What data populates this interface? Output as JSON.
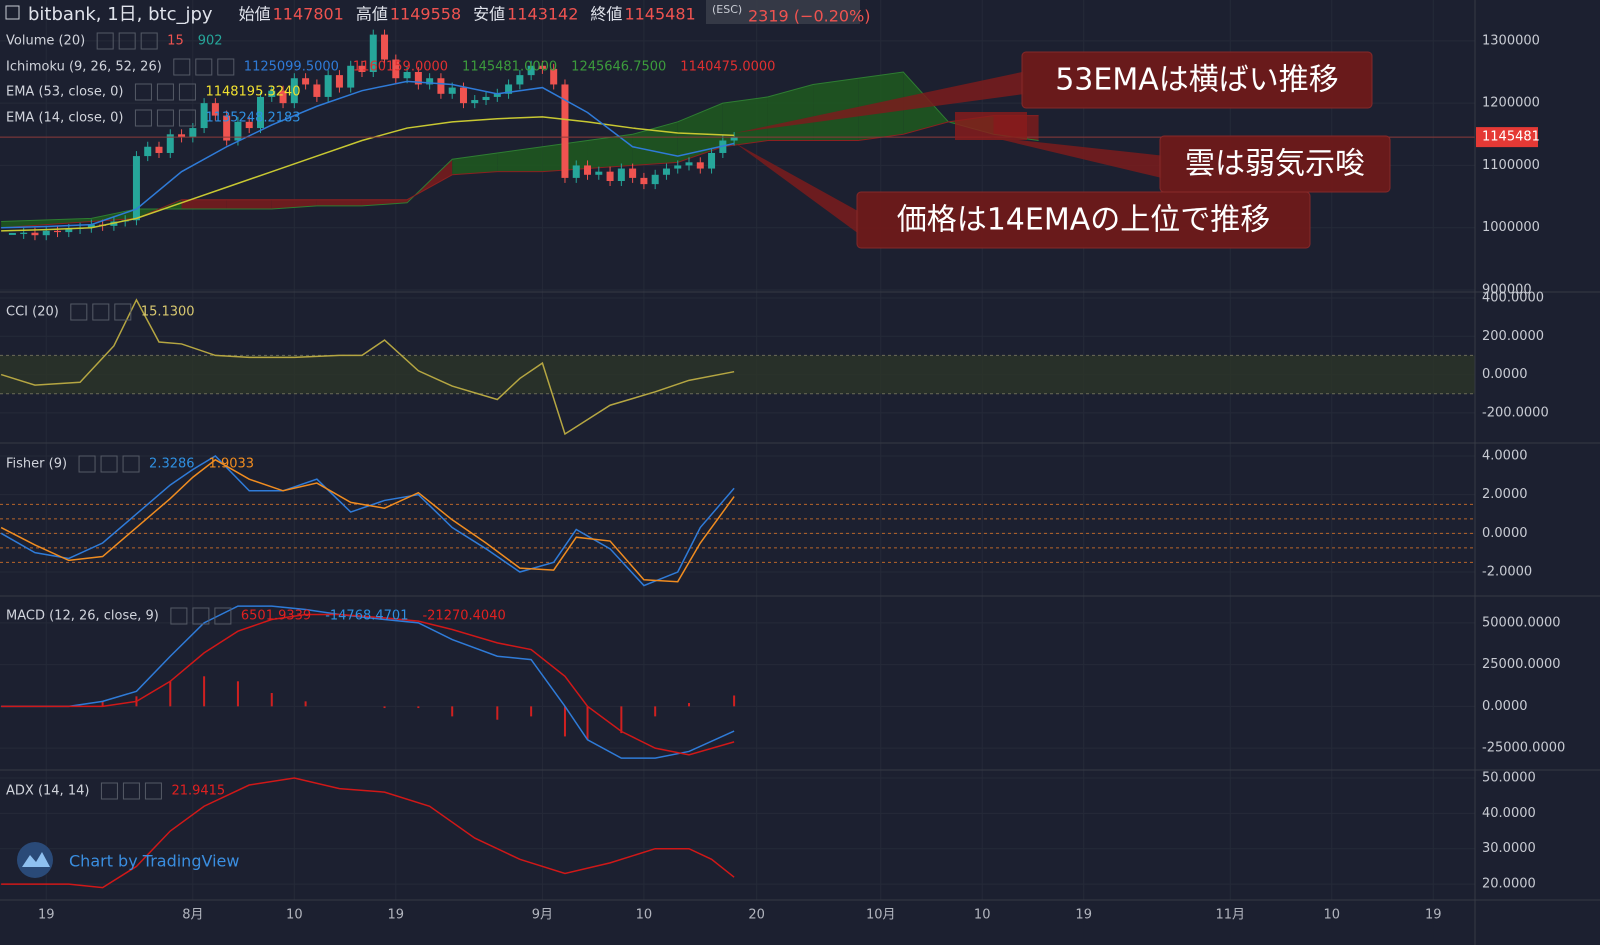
{
  "header": {
    "symbol": "bitbank, 1日, btc_jpy",
    "fields": [
      {
        "label": "始値",
        "value": 1147801
      },
      {
        "label": "高値",
        "value": 1149558
      },
      {
        "label": "安値",
        "value": 1143142
      },
      {
        "label": "終値",
        "value": 1145481
      }
    ],
    "change": "2319 (−0.20%)",
    "esc": "(ESC)"
  },
  "x_axis": {
    "xlim": [
      -4.1,
      126.7
    ],
    "xticks": [
      {
        "value": 0,
        "label": "19"
      },
      {
        "value": 13,
        "label": "8月"
      },
      {
        "value": 22,
        "label": "10"
      },
      {
        "value": 31,
        "label": "19"
      },
      {
        "value": 44,
        "label": "9月"
      },
      {
        "value": 53,
        "label": "10"
      },
      {
        "value": 63,
        "label": "20"
      },
      {
        "value": 74,
        "label": "10月"
      },
      {
        "value": 83,
        "label": "10"
      },
      {
        "value": 92,
        "label": "19"
      },
      {
        "value": 105,
        "label": "11月"
      },
      {
        "value": 114,
        "label": "10"
      },
      {
        "value": 123,
        "label": "19"
      }
    ]
  },
  "chart_data": [
    {
      "type": "candlestick",
      "ylim": [
        896800,
        1365600
      ],
      "yticks": [
        900000,
        1000000,
        1100000,
        1200000,
        1300000
      ],
      "last_price": 1145481,
      "candles": {
        "up_color": "#26a69a",
        "down_color": "#ef5350",
        "x": [
          -3,
          -2,
          -1,
          0,
          1,
          2,
          3,
          4,
          5,
          6,
          7,
          8,
          9,
          10,
          11,
          12,
          13,
          14,
          15,
          16,
          17,
          18,
          19,
          20,
          21,
          22,
          23,
          24,
          25,
          26,
          27,
          28,
          29,
          30,
          31,
          32,
          33,
          34,
          35,
          36,
          37,
          38,
          39,
          40,
          41,
          42,
          43,
          44,
          45,
          46,
          47,
          48,
          49,
          50,
          51,
          52,
          53,
          54,
          55,
          56,
          57,
          58,
          59,
          60,
          61
        ],
        "close": [
          990000,
          992000,
          988000,
          995000,
          993000,
          998000,
          1000000,
          1005000,
          1003000,
          1010000,
          1012000,
          1115000,
          1130000,
          1120000,
          1150000,
          1145000,
          1160000,
          1200000,
          1180000,
          1140000,
          1170000,
          1160000,
          1210000,
          1220000,
          1200000,
          1240000,
          1230000,
          1210000,
          1245000,
          1225000,
          1260000,
          1250000,
          1310000,
          1270000,
          1240000,
          1250000,
          1230000,
          1240000,
          1215000,
          1225000,
          1200000,
          1205000,
          1210000,
          1215000,
          1230000,
          1245000,
          1260000,
          1255000,
          1230000,
          1080000,
          1100000,
          1085000,
          1090000,
          1075000,
          1095000,
          1080000,
          1070000,
          1085000,
          1095000,
          1100000,
          1105000,
          1095000,
          1120000,
          1140000,
          1145481
        ]
      },
      "indicators": [
        {
          "name": "Volume (20)",
          "readouts": [
            {
              "text": "15",
              "color": "#ef5350"
            },
            {
              "text": "902",
              "color": "#26a69a"
            }
          ]
        },
        {
          "name": "Ichimoku (9, 26, 52, 26)",
          "readouts": [
            {
              "text": "1125099.5000",
              "color": "#2f7bd8"
            },
            {
              "text": "1160159.0000",
              "color": "#e03030"
            },
            {
              "text": "1145481.0000",
              "color": "#3c9c3c"
            },
            {
              "text": "1245646.7500",
              "color": "#3c9c3c"
            },
            {
              "text": "1140475.0000",
              "color": "#e03030"
            }
          ],
          "series": [
            {
              "type": "cloud",
              "up_color": "#1f5a1f",
              "down_color": "#7a1c1c",
              "x": [
                -4,
                4,
                8,
                12,
                16,
                20,
                24,
                28,
                32,
                36,
                40,
                44,
                48,
                52,
                56,
                60,
                64,
                68,
                72,
                76,
                80,
                84,
                88
              ],
              "a": [
                1010000,
                1015000,
                1030000,
                1030000,
                1030000,
                1030000,
                1035000,
                1035000,
                1040000,
                1110000,
                1120000,
                1130000,
                1140000,
                1150000,
                1170000,
                1200000,
                1210000,
                1230000,
                1240000,
                1250000,
                1170000,
                1150000,
                1140000
              ],
              "b": [
                1000000,
                1010000,
                1015000,
                1045000,
                1045000,
                1045000,
                1045000,
                1045000,
                1045000,
                1085000,
                1090000,
                1090000,
                1095000,
                1100000,
                1105000,
                1130000,
                1140000,
                1140000,
                1140000,
                1150000,
                1170000,
                1180000,
                1180000
              ]
            }
          ]
        },
        {
          "name": "EMA (53, close, 0)",
          "readouts": [
            {
              "text": "1148195.3240",
              "color": "#f0e030"
            }
          ],
          "series": [
            {
              "type": "line",
              "color": "#c8c832",
              "x": [
                -4,
                0,
                4,
                8,
                12,
                16,
                20,
                24,
                28,
                32,
                36,
                40,
                44,
                48,
                52,
                56,
                61
              ],
              "values": [
                995000,
                997000,
                1000000,
                1015000,
                1040000,
                1065000,
                1090000,
                1115000,
                1140000,
                1160000,
                1170000,
                1175000,
                1178000,
                1170000,
                1160000,
                1152000,
                1148195
              ]
            }
          ]
        },
        {
          "name": "EMA (14, close, 0)",
          "readouts": [
            {
              "text": "1135248.2183",
              "color": "#2f8fe0"
            }
          ],
          "series": [
            {
              "type": "line",
              "color": "#2f7bd8",
              "x": [
                -4,
                0,
                4,
                8,
                12,
                16,
                20,
                24,
                28,
                32,
                36,
                40,
                44,
                48,
                52,
                56,
                61
              ],
              "values": [
                1000000,
                1002000,
                1005000,
                1030000,
                1090000,
                1130000,
                1165000,
                1195000,
                1220000,
                1235000,
                1230000,
                1215000,
                1225000,
                1185000,
                1130000,
                1115000,
                1135248
              ]
            }
          ]
        }
      ]
    },
    {
      "type": "line",
      "ylim": [
        -357,
        431
      ],
      "yticks": [
        {
          "value": -200,
          "label": "-200.0000"
        },
        {
          "value": 0,
          "label": "0.0000"
        },
        {
          "value": 200,
          "label": "200.0000"
        },
        {
          "value": 400,
          "label": "400.0000"
        }
      ],
      "band": [
        -100,
        100
      ],
      "indicators": [
        {
          "name": "CCI (20)",
          "readouts": [
            {
              "text": "15.1300",
              "color": "#d8c870"
            }
          ],
          "series": [
            {
              "type": "line",
              "color": "#b5a642",
              "x": [
                -4,
                -1,
                3,
                6,
                8,
                10,
                12,
                15,
                18,
                22,
                26,
                28,
                30,
                33,
                36,
                40,
                42,
                44,
                46,
                50,
                54,
                57,
                61
              ],
              "values": [
                0,
                -55,
                -40,
                150,
                390,
                170,
                160,
                100,
                90,
                90,
                100,
                100,
                180,
                20,
                -60,
                -130,
                -20,
                60,
                -310,
                -160,
                -90,
                -30,
                15.13
              ]
            }
          ]
        }
      ]
    },
    {
      "type": "line",
      "ylim": [
        -3.24,
        4.67
      ],
      "yticks": [
        {
          "value": -2,
          "label": "-2.0000"
        },
        {
          "value": 0,
          "label": "0.0000"
        },
        {
          "value": 2,
          "label": "2.0000"
        },
        {
          "value": 4,
          "label": "4.0000"
        }
      ],
      "levels": [
        1.5,
        0.75,
        0,
        -0.75,
        -1.5
      ],
      "indicators": [
        {
          "name": "Fisher (9)",
          "readouts": [
            {
              "text": "2.3286",
              "color": "#2f8fe0"
            },
            {
              "text": "1.9033",
              "color": "#f08c20"
            }
          ],
          "series": [
            {
              "type": "line",
              "color": "#2f7bd8",
              "x": [
                -4,
                -1,
                2,
                5,
                8,
                11,
                13,
                15,
                18,
                21,
                24,
                27,
                30,
                33,
                36,
                39,
                42,
                45,
                47,
                50,
                53,
                56,
                58,
                61
              ],
              "values": [
                0,
                -1,
                -1.3,
                -0.5,
                1,
                2.5,
                3.3,
                4,
                2.2,
                2.2,
                2.8,
                1.1,
                1.7,
                2,
                0.3,
                -0.8,
                -2,
                -1.5,
                0.2,
                -0.8,
                -2.7,
                -2,
                0.3,
                2.33
              ]
            },
            {
              "type": "line",
              "color": "#f08c20",
              "x": [
                -4,
                -1,
                2,
                5,
                8,
                11,
                13,
                15,
                18,
                21,
                24,
                27,
                30,
                33,
                36,
                39,
                42,
                45,
                47,
                50,
                53,
                56,
                58,
                61
              ],
              "values": [
                0.3,
                -0.6,
                -1.4,
                -1.2,
                0.3,
                1.8,
                2.9,
                3.8,
                2.8,
                2.2,
                2.6,
                1.6,
                1.3,
                2.1,
                0.7,
                -0.5,
                -1.8,
                -1.9,
                -0.2,
                -0.4,
                -2.4,
                -2.5,
                -0.5,
                1.9
              ]
            }
          ]
        }
      ]
    },
    {
      "type": "line",
      "ylim": [
        -38100,
        66070
      ],
      "yticks": [
        {
          "value": -25000,
          "label": "-25000.0000"
        },
        {
          "value": 0,
          "label": "0.0000"
        },
        {
          "value": 25000,
          "label": "25000.0000"
        },
        {
          "value": 50000,
          "label": "50000.0000"
        }
      ],
      "indicators": [
        {
          "name": "MACD (12, 26, close, 9)",
          "readouts": [
            {
              "text": "6501.9339",
              "color": "#e02020"
            },
            {
              "text": "-14768.4701",
              "color": "#2f8fe0"
            },
            {
              "text": "-21270.4040",
              "color": "#e02020"
            }
          ],
          "series": [
            {
              "type": "bar",
              "color": "#d02020",
              "x": [
                -4,
                2,
                5,
                8,
                11,
                14,
                17,
                20,
                23,
                26,
                30,
                33,
                36,
                40,
                43,
                46,
                48,
                51,
                54,
                57,
                61
              ],
              "values": [
                0,
                0,
                3000,
                6000,
                15000,
                18000,
                15000,
                8000,
                3000,
                0,
                -1000,
                -1000,
                -6000,
                -8000,
                -6000,
                -18000,
                -20000,
                -16000,
                -6000,
                2000,
                6502
              ]
            },
            {
              "type": "line",
              "color": "#2f7bd8",
              "x": [
                -4,
                2,
                5,
                8,
                11,
                14,
                17,
                20,
                23,
                26,
                30,
                33,
                36,
                40,
                43,
                46,
                48,
                51,
                54,
                57,
                61
              ],
              "values": [
                0,
                0,
                3000,
                9000,
                30000,
                50000,
                60000,
                60000,
                58000,
                55000,
                52000,
                50000,
                40000,
                30000,
                28000,
                0,
                -20000,
                -31000,
                -31000,
                -27000,
                -14768
              ]
            },
            {
              "type": "line",
              "color": "#d01818",
              "x": [
                -4,
                2,
                5,
                8,
                11,
                14,
                17,
                20,
                23,
                26,
                30,
                33,
                36,
                40,
                43,
                46,
                48,
                51,
                54,
                57,
                61
              ],
              "values": [
                0,
                0,
                0,
                3000,
                15000,
                32000,
                45000,
                52000,
                55000,
                55000,
                53000,
                51000,
                46000,
                38000,
                34000,
                18000,
                0,
                -15000,
                -25000,
                -29000,
                -21270
              ]
            }
          ]
        }
      ]
    },
    {
      "type": "line",
      "ylim": [
        15.5,
        52.25
      ],
      "yticks": [
        {
          "value": 20,
          "label": "20.0000"
        },
        {
          "value": 30,
          "label": "30.0000"
        },
        {
          "value": 40,
          "label": "40.0000"
        },
        {
          "value": 50,
          "label": "50.0000"
        }
      ],
      "indicators": [
        {
          "name": "ADX (14, 14)",
          "readouts": [
            {
              "text": "21.9415",
              "color": "#e02020"
            }
          ],
          "series": [
            {
              "type": "line",
              "color": "#d01818",
              "x": [
                -4,
                2,
                5,
                8,
                11,
                14,
                18,
                22,
                26,
                30,
                34,
                38,
                42,
                46,
                50,
                54,
                57,
                59,
                61
              ],
              "values": [
                20,
                20,
                19,
                25,
                35,
                42,
                48,
                50,
                47,
                46,
                42,
                33,
                27,
                23,
                26,
                30,
                30,
                27,
                21.94
              ]
            }
          ]
        }
      ]
    }
  ],
  "annotations": [
    {
      "text": "53EMAは横ばい推移"
    },
    {
      "text": "雲は弱気示唆"
    },
    {
      "text": "価格は14EMAの上位で推移"
    }
  ],
  "branding": "Chart by TradingView"
}
